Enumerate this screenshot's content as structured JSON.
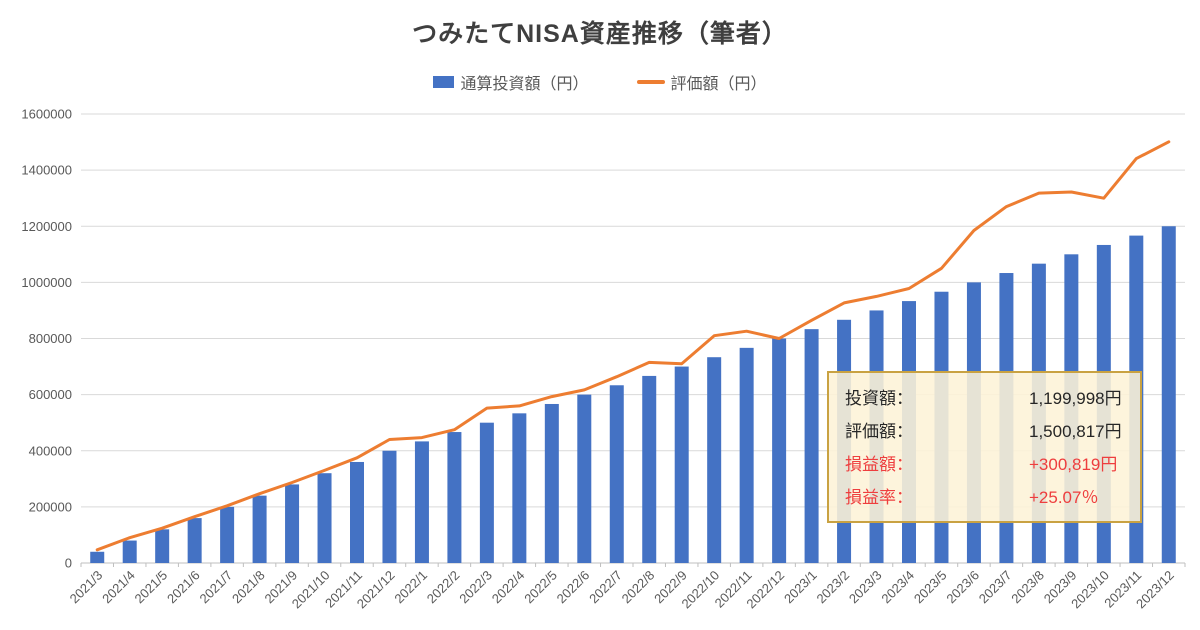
{
  "title": "つみたてNISA資産推移（筆者）",
  "legend": [
    {
      "label": "通算投資額（円）",
      "color": "#4472C4",
      "type": "bar"
    },
    {
      "label": "評価額（円）",
      "color": "#ED7D31",
      "type": "line"
    }
  ],
  "colors": {
    "bar": "#4472C4",
    "line": "#ED7D31",
    "gridline": "#D9D9D9",
    "axis": "#BFBFBF",
    "tick_text": "#595959",
    "title_text": "#3F3F3F",
    "box_border": "#C9A242",
    "box_background": "rgba(253,243,215,0.88)",
    "box_text": "#262626",
    "box_red": "#EE3E3E"
  },
  "chart_data": {
    "type": "bar",
    "title": "つみたてNISA資産推移（筆者）",
    "categories": [
      "2021/3",
      "2021/4",
      "2021/5",
      "2021/6",
      "2021/7",
      "2021/8",
      "2021/9",
      "2021/10",
      "2021/11",
      "2021/12",
      "2022/1",
      "2022/2",
      "2022/3",
      "2022/4",
      "2022/5",
      "2022/6",
      "2022/7",
      "2022/8",
      "2022/9",
      "2022/10",
      "2022/11",
      "2022/12",
      "2023/1",
      "2023/2",
      "2023/3",
      "2023/4",
      "2023/5",
      "2023/6",
      "2023/7",
      "2023/8",
      "2023/9",
      "2023/10",
      "2023/11",
      "2023/12"
    ],
    "series": [
      {
        "name": "通算投資額（円）",
        "type": "bar",
        "color": "#4472C4",
        "values": [
          40000,
          80000,
          120000,
          160000,
          200000,
          240000,
          280000,
          320000,
          360000,
          400000,
          433333,
          466666,
          499999,
          533332,
          566665,
          599998,
          633331,
          666664,
          699997,
          733330,
          766663,
          799996,
          833330,
          866663,
          899997,
          933330,
          966664,
          999997,
          1033331,
          1066664,
          1099998,
          1133331,
          1166665,
          1199998
        ]
      },
      {
        "name": "評価額（円）",
        "type": "line",
        "color": "#ED7D31",
        "values": [
          47000,
          90000,
          124000,
          165000,
          204000,
          247000,
          287000,
          330000,
          375000,
          440000,
          447000,
          475000,
          552000,
          560000,
          593000,
          617000,
          664000,
          715000,
          710000,
          810000,
          826000,
          800000,
          865000,
          927000,
          950000,
          978000,
          1050000,
          1185000,
          1270000,
          1318000,
          1322000,
          1300000,
          1441000,
          1500817
        ]
      }
    ],
    "xlabel": "",
    "ylabel": "",
    "ylim": [
      0,
      1600000
    ],
    "ytick_step": 200000,
    "ytick_values": [
      0,
      200000,
      400000,
      600000,
      800000,
      1000000,
      1200000,
      1400000,
      1600000
    ],
    "grid": true,
    "legend_position": "top",
    "x_tick_rotation": -45
  },
  "info_box": {
    "rows": [
      {
        "label": "投資額：",
        "value": "1,199,998円",
        "color": "#262626"
      },
      {
        "label": "評価額：",
        "value": "1,500,817円",
        "color": "#262626"
      },
      {
        "label": "損益額：",
        "value": "+300,819円",
        "color": "#EE3E3E"
      },
      {
        "label": "損益率：",
        "value": "+25.07％",
        "color": "#EE3E3E"
      }
    ]
  }
}
